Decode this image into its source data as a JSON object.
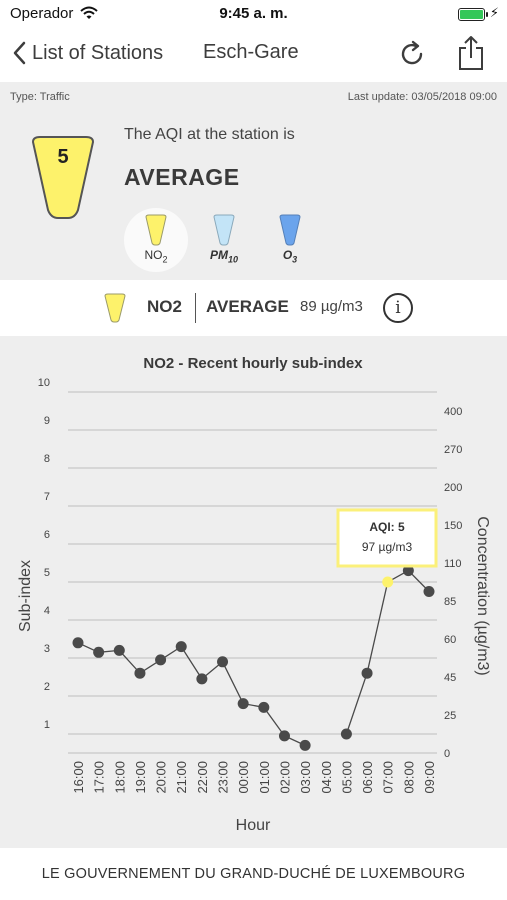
{
  "status_bar": {
    "carrier": "Operador",
    "time": "9:45 a. m."
  },
  "nav": {
    "back_label": "List of Stations",
    "title": "Esch-Gare"
  },
  "station": {
    "type_label": "Type: Traffic",
    "last_update": "Last update: 03/05/2018 09:00",
    "aqi_value": "5",
    "aqi_intro": "The AQI at the station is",
    "aqi_level": "AVERAGE"
  },
  "colors": {
    "no2": "#fdf26b",
    "pm10": "#c3e4f7",
    "o3": "#6ba4ec",
    "tooltip_border": "#fbf07a",
    "line": "#4a4a4a"
  },
  "pollutants": [
    {
      "label": "NO",
      "sub": "2",
      "selected": true
    },
    {
      "label": "PM",
      "sub": "10",
      "selected": false
    },
    {
      "label": "O",
      "sub": "3",
      "selected": false
    }
  ],
  "summary": {
    "pollutant": "NO2",
    "level": "AVERAGE",
    "concentration": "89 µg/m3",
    "info_icon": "i"
  },
  "chart_data": {
    "type": "line",
    "title": "NO2 - Recent hourly sub-index",
    "xlabel": "Hour",
    "ylabel": "Sub-index",
    "y2label": "Concentration (µg/m3)",
    "ylim": [
      0,
      10
    ],
    "yticks": [
      "1",
      "2",
      "3",
      "4",
      "5",
      "6",
      "7",
      "8",
      "9",
      "10"
    ],
    "y2ticks": [
      "0",
      "25",
      "45",
      "60",
      "85",
      "110",
      "150",
      "200",
      "270",
      "400"
    ],
    "categories": [
      "16:00",
      "17:00",
      "18:00",
      "19:00",
      "20:00",
      "21:00",
      "22:00",
      "23:00",
      "00:00",
      "01:00",
      "02:00",
      "03:00",
      "04:00",
      "05:00",
      "06:00",
      "07:00",
      "08:00",
      "09:00"
    ],
    "series": [
      {
        "values": [
          3.4,
          3.15,
          3.2,
          2.6,
          2.95,
          3.3,
          2.45,
          2.9,
          1.8,
          1.7,
          0.95,
          0.7,
          null,
          1.0,
          2.6,
          5.0,
          5.3,
          4.75
        ]
      }
    ],
    "highlight_index": 15,
    "tooltip": {
      "title": "AQI: 5",
      "value": "97 µg/m3"
    },
    "grid": true
  },
  "footer": {
    "text": "LE GOUVERNEMENT DU GRAND-DUCHÉ DE LUXEMBOURG"
  }
}
